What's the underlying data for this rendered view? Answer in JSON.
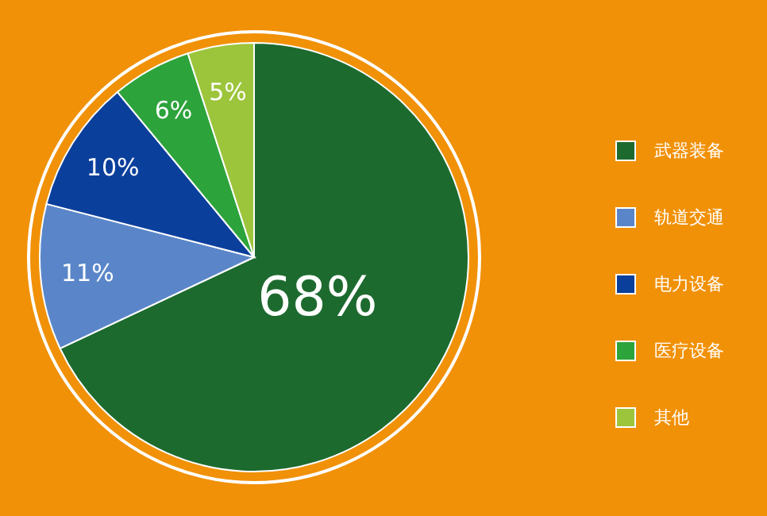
{
  "chart_data": {
    "type": "pie",
    "categories": [
      "武器装备",
      "轨道交通",
      "电力设备",
      "医疗设备",
      "其他"
    ],
    "values": [
      68,
      11,
      10,
      6,
      5
    ],
    "colors": [
      "#1d6a2f",
      "#5a86c9",
      "#0b3f9c",
      "#2da33b",
      "#9cc53b"
    ],
    "value_labels": [
      "68%",
      "11%",
      "10%",
      "6%",
      "5%"
    ],
    "legend": "right"
  }
}
